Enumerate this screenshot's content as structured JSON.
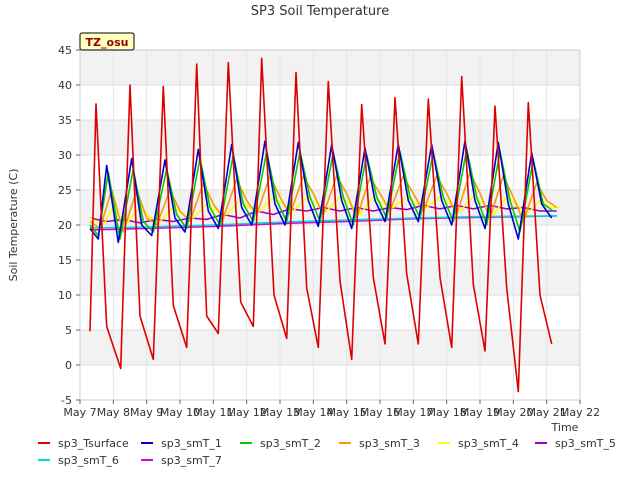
{
  "chart_data": {
    "type": "line",
    "title": "SP3 Soil Temperature",
    "xlabel": "Time",
    "ylabel": "Soil Temperature (C)",
    "badge": "TZ_osu",
    "xlim": [
      0,
      15
    ],
    "ylim": [
      -5,
      45
    ],
    "x_ticks": [
      {
        "x": 0,
        "label": "May 7"
      },
      {
        "x": 1,
        "label": "May 8"
      },
      {
        "x": 2,
        "label": "May 9"
      },
      {
        "x": 3,
        "label": "May 10"
      },
      {
        "x": 4,
        "label": "May 11"
      },
      {
        "x": 5,
        "label": "May 12"
      },
      {
        "x": 6,
        "label": "May 13"
      },
      {
        "x": 7,
        "label": "May 14"
      },
      {
        "x": 8,
        "label": "May 15"
      },
      {
        "x": 9,
        "label": "May 16"
      },
      {
        "x": 10,
        "label": "May 17"
      },
      {
        "x": 11,
        "label": "May 18"
      },
      {
        "x": 12,
        "label": "May 19"
      },
      {
        "x": 13,
        "label": "May 20"
      },
      {
        "x": 14,
        "label": "May 21"
      },
      {
        "x": 15,
        "label": "May 22"
      }
    ],
    "y_ticks": [
      {
        "y": -5,
        "label": "-5"
      },
      {
        "y": 0,
        "label": "0"
      },
      {
        "y": 5,
        "label": "5"
      },
      {
        "y": 10,
        "label": "10"
      },
      {
        "y": 15,
        "label": "15"
      },
      {
        "y": 20,
        "label": "20"
      },
      {
        "y": 25,
        "label": "25"
      },
      {
        "y": 30,
        "label": "30"
      },
      {
        "y": 35,
        "label": "35"
      },
      {
        "y": 40,
        "label": "40"
      },
      {
        "y": 45,
        "label": "45"
      }
    ],
    "series": [
      {
        "name": "sp3_Tsurface",
        "color": "#dd0000",
        "x": [
          0.3,
          0.48,
          0.8,
          1.22,
          1.5,
          1.8,
          2.2,
          2.5,
          2.8,
          3.2,
          3.5,
          3.8,
          4.15,
          4.45,
          4.82,
          5.2,
          5.45,
          5.82,
          6.2,
          6.48,
          6.8,
          7.15,
          7.45,
          7.8,
          8.15,
          8.45,
          8.8,
          9.15,
          9.45,
          9.8,
          10.15,
          10.45,
          10.8,
          11.15,
          11.45,
          11.8,
          12.15,
          12.45,
          12.8,
          13.15,
          13.45,
          13.8,
          14.15
        ],
        "y": [
          4.8,
          37.3,
          5.5,
          -0.5,
          40.0,
          7.0,
          0.8,
          39.8,
          8.5,
          2.5,
          43.0,
          7.0,
          4.5,
          43.2,
          9.0,
          5.5,
          43.8,
          10.0,
          3.8,
          41.8,
          11.0,
          2.5,
          40.5,
          12.0,
          0.8,
          37.2,
          12.5,
          3.0,
          38.2,
          13.0,
          3.0,
          38.0,
          12.5,
          2.5,
          41.2,
          11.5,
          2.0,
          37.0,
          11.0,
          -3.8,
          37.5,
          10.0,
          3.0
        ]
      },
      {
        "name": "sp3_smT_1",
        "color": "#0000cc",
        "x": [
          0.3,
          0.55,
          0.8,
          1.15,
          1.55,
          1.85,
          2.15,
          2.55,
          2.85,
          3.15,
          3.55,
          3.85,
          4.15,
          4.55,
          4.85,
          5.15,
          5.55,
          5.85,
          6.15,
          6.55,
          6.85,
          7.15,
          7.55,
          7.85,
          8.15,
          8.55,
          8.85,
          9.15,
          9.55,
          9.85,
          10.15,
          10.55,
          10.85,
          11.15,
          11.55,
          11.85,
          12.15,
          12.55,
          12.85,
          13.15,
          13.55,
          13.85,
          14.15
        ],
        "y": [
          19.5,
          18.0,
          28.5,
          17.5,
          29.5,
          20.0,
          18.5,
          29.3,
          21.0,
          19.0,
          30.8,
          22.0,
          19.5,
          31.5,
          22.5,
          20.0,
          32.0,
          23.0,
          20.0,
          31.8,
          23.5,
          19.8,
          31.5,
          23.5,
          19.5,
          31.0,
          23.5,
          20.5,
          31.5,
          23.5,
          20.5,
          31.5,
          23.5,
          20.0,
          32.0,
          23.5,
          19.5,
          31.8,
          23.0,
          18.0,
          30.3,
          23.0,
          21.0
        ]
      },
      {
        "name": "sp3_smT_2",
        "color": "#00cc00",
        "x": [
          0.3,
          0.55,
          0.85,
          1.2,
          1.6,
          1.9,
          2.2,
          2.6,
          2.9,
          3.2,
          3.6,
          3.9,
          4.2,
          4.6,
          4.9,
          5.2,
          5.6,
          5.9,
          6.2,
          6.6,
          6.9,
          7.2,
          7.6,
          7.9,
          8.2,
          8.6,
          8.9,
          9.2,
          9.6,
          9.9,
          10.2,
          10.6,
          10.9,
          11.2,
          11.6,
          11.9,
          12.2,
          12.6,
          12.9,
          13.2,
          13.6,
          13.9,
          14.2
        ],
        "y": [
          20.0,
          18.5,
          27.5,
          18.0,
          28.0,
          20.5,
          19.0,
          28.0,
          21.5,
          19.5,
          29.5,
          22.5,
          20.0,
          30.0,
          23.0,
          20.5,
          30.5,
          23.5,
          20.5,
          30.5,
          24.0,
          20.5,
          30.3,
          24.0,
          20.0,
          30.0,
          24.0,
          21.0,
          30.5,
          24.0,
          21.0,
          30.3,
          24.0,
          20.5,
          30.8,
          24.0,
          20.0,
          30.5,
          23.5,
          19.0,
          29.3,
          23.0,
          22.0
        ]
      },
      {
        "name": "sp3_smT_3",
        "color": "#ff9900",
        "x": [
          0.3,
          0.6,
          0.95,
          1.3,
          1.7,
          2.0,
          2.3,
          2.7,
          3.0,
          3.3,
          3.7,
          4.0,
          4.3,
          4.7,
          5.0,
          5.3,
          5.7,
          6.0,
          6.3,
          6.7,
          7.0,
          7.3,
          7.7,
          8.0,
          8.3,
          8.7,
          9.0,
          9.3,
          9.7,
          10.0,
          10.3,
          10.7,
          11.0,
          11.3,
          11.7,
          12.0,
          12.3,
          12.7,
          13.0,
          13.3,
          13.7,
          14.0,
          14.3
        ],
        "y": [
          20.5,
          19.5,
          25.0,
          19.0,
          25.0,
          21.0,
          20.0,
          25.0,
          22.0,
          20.5,
          26.0,
          23.0,
          21.0,
          26.5,
          23.5,
          21.5,
          27.0,
          24.0,
          21.5,
          27.0,
          24.5,
          21.5,
          27.0,
          24.5,
          21.0,
          26.8,
          24.5,
          22.0,
          27.0,
          24.5,
          22.0,
          27.0,
          24.5,
          21.5,
          27.5,
          24.5,
          21.0,
          27.0,
          24.0,
          20.5,
          26.0,
          23.5,
          22.5
        ]
      },
      {
        "name": "sp3_smT_4",
        "color": "#ffff00",
        "x": [
          0.3,
          0.7,
          1.0,
          1.35,
          1.8,
          2.1,
          2.4,
          2.8,
          3.1,
          3.4,
          3.8,
          4.1,
          4.4,
          4.8,
          5.1,
          5.4,
          5.8,
          6.1,
          6.4,
          6.8,
          7.1,
          7.4,
          7.8,
          8.1,
          8.4,
          8.8,
          9.1,
          9.4,
          9.8,
          10.1,
          10.4,
          10.8,
          11.1,
          11.4,
          11.8,
          12.1,
          12.4,
          12.8,
          13.1,
          13.4,
          13.8,
          14.1,
          14.4
        ],
        "y": [
          21.0,
          20.0,
          22.5,
          20.0,
          22.5,
          21.0,
          20.5,
          22.5,
          21.5,
          21.0,
          23.0,
          22.0,
          21.5,
          23.5,
          22.5,
          22.0,
          24.0,
          23.0,
          22.0,
          24.0,
          23.0,
          22.0,
          24.0,
          23.0,
          21.5,
          24.0,
          23.0,
          22.5,
          24.0,
          23.0,
          22.5,
          24.0,
          23.0,
          22.0,
          24.0,
          23.0,
          21.5,
          24.0,
          23.0,
          21.5,
          23.5,
          22.5,
          22.5
        ]
      },
      {
        "name": "sp3_smT_5",
        "color": "#9900cc",
        "x": [
          0.3,
          0.8,
          1.3,
          1.8,
          2.3,
          2.8,
          3.3,
          3.8,
          4.3,
          4.8,
          5.3,
          5.8,
          6.3,
          6.8,
          7.3,
          7.8,
          8.3,
          8.8,
          9.3,
          9.8,
          10.3,
          10.8,
          11.3,
          11.8,
          12.3,
          12.8,
          13.3,
          13.8,
          14.3
        ],
        "y": [
          21.0,
          20.5,
          20.8,
          20.3,
          20.8,
          20.5,
          21.0,
          20.8,
          21.5,
          21.0,
          22.0,
          21.5,
          22.3,
          22.0,
          22.5,
          22.0,
          22.5,
          22.0,
          22.5,
          22.2,
          22.8,
          22.3,
          22.8,
          22.3,
          22.8,
          22.3,
          22.5,
          22.0,
          22.0
        ]
      },
      {
        "name": "sp3_smT_6",
        "color": "#00dddd",
        "x": [
          0.3,
          2.0,
          4.0,
          6.0,
          8.0,
          10.0,
          12.0,
          14.3
        ],
        "y": [
          19.6,
          19.7,
          20.0,
          20.4,
          20.7,
          21.0,
          21.2,
          21.3
        ]
      },
      {
        "name": "sp3_smT_7",
        "color": "#dd00dd",
        "x": [
          0.3,
          2.0,
          4.0,
          6.0,
          8.0,
          10.0,
          12.0,
          14.3
        ],
        "y": [
          19.3,
          19.5,
          19.8,
          20.2,
          20.5,
          20.9,
          21.1,
          21.3
        ]
      }
    ]
  }
}
